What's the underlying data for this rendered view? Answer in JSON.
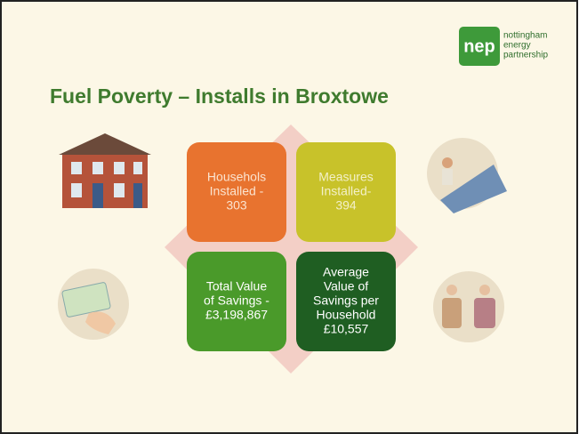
{
  "logo": {
    "mark": "nep",
    "lines": [
      "nottingham",
      "energy",
      "partnership"
    ]
  },
  "title": "Fuel Poverty – Installs in Broxtowe",
  "boxes": [
    {
      "lines": [
        "Househols",
        "Installed -",
        "303"
      ]
    },
    {
      "lines": [
        "Measures",
        "Installed-",
        "394"
      ]
    },
    {
      "lines": [
        "Total Value",
        "of Savings -",
        "£3,198,867"
      ]
    },
    {
      "lines": [
        "Average",
        "Value of",
        "Savings per",
        "Household",
        "£10,557"
      ]
    }
  ]
}
